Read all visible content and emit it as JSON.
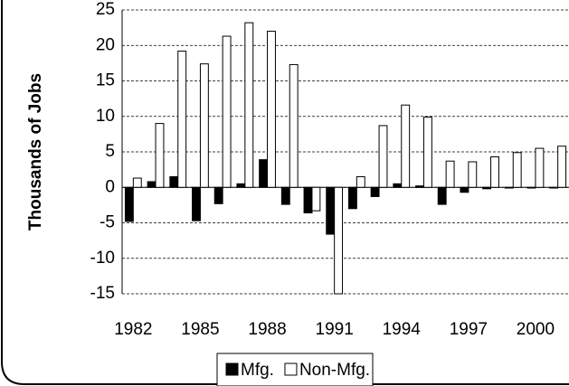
{
  "chart_data": {
    "type": "bar",
    "y_label": "Thousands of Jobs",
    "categories": [
      "1982",
      null,
      null,
      "1985",
      null,
      null,
      "1988",
      null,
      null,
      "1991",
      null,
      null,
      "1994",
      null,
      null,
      "1997",
      null,
      null,
      "2000",
      null
    ],
    "series": [
      {
        "name": "Mfg.",
        "color": "#000000",
        "values": [
          -4.8,
          0.8,
          1.5,
          -4.7,
          -2.3,
          0.5,
          3.9,
          -2.4,
          -3.6,
          -6.6,
          -3,
          -1.3,
          0.5,
          0.2,
          -2.4,
          -0.7,
          -0.2,
          -0.1,
          -0.1,
          -0.1
        ]
      },
      {
        "name": "Non-Mfg.",
        "color": "#ffffff",
        "values": [
          1.3,
          9,
          19.2,
          17.4,
          21.3,
          23.2,
          22,
          17.3,
          -3.3,
          -15,
          1.5,
          8.7,
          11.6,
          9.9,
          3.7,
          3.6,
          4.3,
          4.9,
          5.5,
          5.8
        ]
      }
    ],
    "ylim": [
      -15,
      25
    ],
    "yticks": [
      -15,
      -10,
      -5,
      0,
      5,
      10,
      15,
      20,
      25
    ],
    "grid": true,
    "legend": "bottom"
  }
}
